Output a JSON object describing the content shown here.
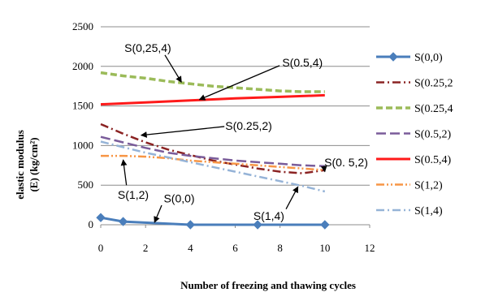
{
  "chart_data": {
    "type": "line",
    "xlabel": "Number of freezing and thawing cycles",
    "ylabel_line1": "elastic modulus",
    "ylabel_line2": "(E) (kg/cm²)",
    "xlim": [
      0,
      12
    ],
    "ylim": [
      0,
      2500
    ],
    "x_ticks": [
      "0",
      "2",
      "4",
      "6",
      "8",
      "10",
      "12"
    ],
    "y_ticks": [
      "0",
      "500",
      "1000",
      "1500",
      "2000",
      "2500"
    ],
    "grid": "horizontal",
    "legend_position": "right",
    "series": [
      {
        "name": "S(0,0)",
        "color": "#4a7ebb",
        "dash": "solid",
        "marker": "diamond",
        "x": [
          0,
          1,
          4,
          7,
          10
        ],
        "y": [
          90,
          40,
          0,
          0,
          0
        ]
      },
      {
        "name": "S(0.25,2",
        "color": "#8b2323",
        "dash": "dashdot",
        "marker": "none",
        "x": [
          0,
          1,
          2,
          3,
          4,
          5,
          6,
          7,
          8,
          9,
          10
        ],
        "y": [
          1270,
          1150,
          1040,
          950,
          880,
          810,
          760,
          710,
          670,
          650,
          690
        ]
      },
      {
        "name": "S(0.25,4",
        "color": "#9bbb59",
        "dash": "dash",
        "marker": "none",
        "x": [
          0,
          1,
          2,
          3,
          4,
          5,
          6,
          7,
          8,
          9,
          10
        ],
        "y": [
          1920,
          1880,
          1850,
          1810,
          1780,
          1750,
          1730,
          1710,
          1690,
          1680,
          1680
        ]
      },
      {
        "name": "S(0.5,2)",
        "color": "#7a5c9a",
        "dash": "longdash",
        "marker": "none",
        "x": [
          0,
          1,
          2,
          3,
          4,
          5,
          6,
          7,
          8,
          9,
          10
        ],
        "y": [
          1110,
          1040,
          970,
          910,
          870,
          840,
          810,
          790,
          770,
          750,
          740
        ]
      },
      {
        "name": "S(0.5,4)",
        "color": "#ff1a1a",
        "dash": "solid",
        "marker": "none",
        "x": [
          0,
          2,
          4,
          6,
          8,
          10
        ],
        "y": [
          1520,
          1545,
          1570,
          1595,
          1615,
          1635
        ]
      },
      {
        "name": "S(1,2)",
        "color": "#f79646",
        "dash": "dashdotdot",
        "marker": "none",
        "x": [
          0,
          1,
          2,
          3,
          4,
          5,
          6,
          7,
          8,
          9,
          10
        ],
        "y": [
          870,
          870,
          860,
          840,
          810,
          790,
          770,
          750,
          730,
          710,
          690
        ]
      },
      {
        "name": "S(1,4)",
        "color": "#95b3d7",
        "dash": "dashdot",
        "marker": "none",
        "x": [
          0,
          1,
          2,
          3,
          4,
          5,
          6,
          7,
          8,
          9,
          10
        ],
        "y": [
          1050,
          980,
          910,
          850,
          790,
          730,
          670,
          610,
          550,
          490,
          420
        ]
      }
    ],
    "annotations": [
      {
        "text": "S(0,25,4)",
        "tx": 2.1,
        "ty": 2180,
        "ax": 3.6,
        "ay": 1800
      },
      {
        "text": "S(0.5,4)",
        "tx": 9.0,
        "ty": 2000,
        "ax": 4.4,
        "ay": 1580
      },
      {
        "text": "S(0.25,2)",
        "tx": 6.6,
        "ty": 1200,
        "ax": 1.8,
        "ay": 1130
      },
      {
        "text": "S(0. 5,2)",
        "tx": 10.95,
        "ty": 740,
        "ax": 10.0,
        "ay": 670
      },
      {
        "text": "S(1,2)",
        "tx": 1.45,
        "ty": 330,
        "ax": 1.0,
        "ay": 820
      },
      {
        "text": "S(0,0)",
        "tx": 3.5,
        "ty": 280,
        "ax": 2.4,
        "ay": 30
      },
      {
        "text": "S(1,4)",
        "tx": 7.5,
        "ty": 60,
        "ax": 8.8,
        "ay": 480
      }
    ]
  }
}
